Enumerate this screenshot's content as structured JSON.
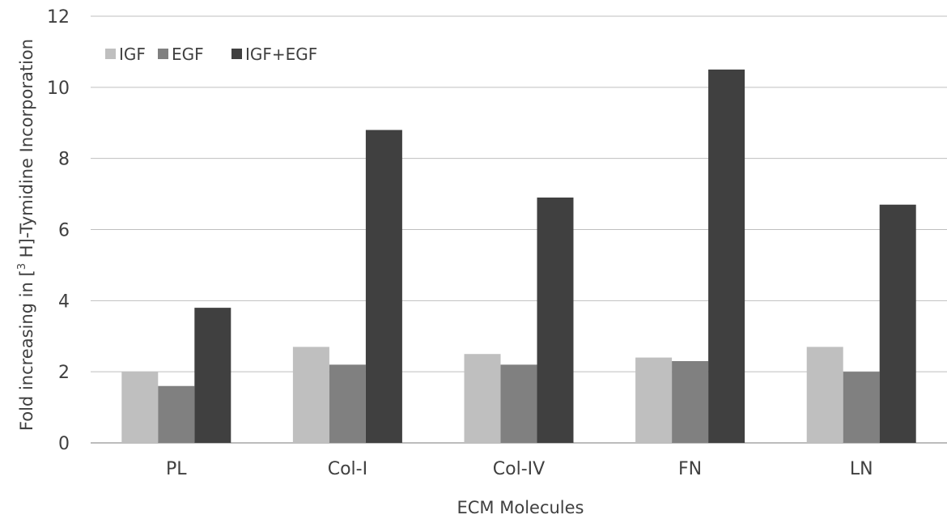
{
  "chart_data": {
    "type": "bar",
    "title": "",
    "xlabel": "ECM Molecules",
    "ylabel": {
      "prefix": "Fold increasing in [",
      "superscript": "3",
      "suffix": " H]-Tymidine Incorporation"
    },
    "categories": [
      "PL",
      "Col-I",
      "Col-IV",
      "FN",
      "LN"
    ],
    "series": [
      {
        "name": "IGF",
        "color": "#bfbfbf",
        "values": [
          2.0,
          2.7,
          2.5,
          2.4,
          2.7
        ]
      },
      {
        "name": "EGF",
        "color": "#808080",
        "values": [
          1.6,
          2.2,
          2.2,
          2.3,
          2.0
        ]
      },
      {
        "name": "IGF+EGF",
        "color": "#404040",
        "values": [
          3.8,
          8.8,
          6.9,
          10.5,
          6.7
        ]
      }
    ],
    "ylim": [
      0,
      12
    ],
    "yticks": [
      0,
      2,
      4,
      6,
      8,
      10,
      12
    ],
    "grid": true,
    "legend_position": "top-left"
  }
}
